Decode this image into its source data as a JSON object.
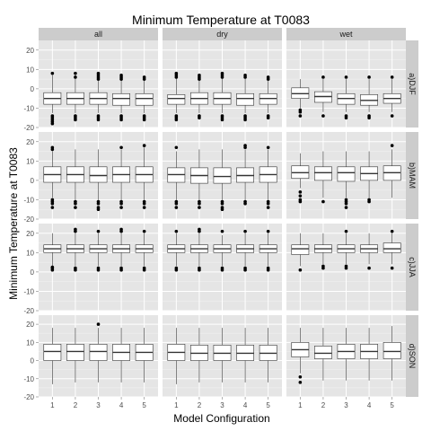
{
  "chart_data": {
    "type": "boxplot",
    "title": "Minimum Temperature at T0083",
    "xlabel": "Model Configuration",
    "ylabel": "Minimum Temperature at T0083",
    "categories": [
      "1",
      "2",
      "3",
      "4",
      "5"
    ],
    "ylim": [
      -20,
      25
    ],
    "yticks": [
      -20,
      -10,
      0,
      10,
      20
    ],
    "grid": true,
    "col_facets": [
      "all",
      "dry",
      "wet"
    ],
    "row_facets": [
      "a)DJF",
      "b)MAM",
      "c)JJA",
      "d)SON"
    ],
    "panels": [
      {
        "row": "a)DJF",
        "col": "all",
        "boxes": [
          {
            "whisker_low": -12.5,
            "q1": -8,
            "median": -5,
            "q3": -2,
            "whisker_high": 7,
            "outliers": [
              8,
              -14,
              -15,
              -16,
              -17,
              -18
            ]
          },
          {
            "whisker_low": -12.5,
            "q1": -8,
            "median": -5,
            "q3": -2,
            "whisker_high": 7,
            "outliers": [
              8,
              6,
              -14,
              -15,
              -16
            ]
          },
          {
            "whisker_low": -12.5,
            "q1": -8,
            "median": -5,
            "q3": -2,
            "whisker_high": 7,
            "outliers": [
              8,
              7,
              6,
              5,
              -14,
              -15,
              -16
            ]
          },
          {
            "whisker_low": -12.5,
            "q1": -8.5,
            "median": -5,
            "q3": -2.5,
            "whisker_high": 6,
            "outliers": [
              7,
              6,
              5,
              -14,
              -15,
              -16
            ]
          },
          {
            "whisker_low": -12.5,
            "q1": -8.5,
            "median": -5,
            "q3": -2.5,
            "whisker_high": 6,
            "outliers": [
              6,
              5,
              -14,
              -15,
              -16
            ]
          }
        ]
      },
      {
        "row": "a)DJF",
        "col": "dry",
        "boxes": [
          {
            "whisker_low": -12.5,
            "q1": -8,
            "median": -5,
            "q3": -3,
            "whisker_high": 6,
            "outliers": [
              8,
              7,
              6,
              -14,
              -15,
              -16
            ]
          },
          {
            "whisker_low": -12.5,
            "q1": -8,
            "median": -5,
            "q3": -2,
            "whisker_high": 6,
            "outliers": [
              7,
              6,
              5,
              -14,
              -15
            ]
          },
          {
            "whisker_low": -12.5,
            "q1": -8,
            "median": -5,
            "q3": -2,
            "whisker_high": 6,
            "outliers": [
              8,
              7,
              6,
              -14,
              -15,
              -16
            ]
          },
          {
            "whisker_low": -12.5,
            "q1": -8.5,
            "median": -5,
            "q3": -2.5,
            "whisker_high": 6,
            "outliers": [
              7,
              6,
              -14,
              -15,
              -16
            ]
          },
          {
            "whisker_low": -12.5,
            "q1": -8,
            "median": -5,
            "q3": -2.5,
            "whisker_high": 5,
            "outliers": [
              6,
              5,
              -14,
              -15
            ]
          }
        ]
      },
      {
        "row": "a)DJF",
        "col": "wet",
        "boxes": [
          {
            "whisker_low": -10,
            "q1": -5,
            "median": -2.5,
            "q3": 0.5,
            "whisker_high": 5,
            "outliers": [
              -11,
              -12,
              -14
            ]
          },
          {
            "whisker_low": -12,
            "q1": -7,
            "median": -4,
            "q3": -1.5,
            "whisker_high": 5,
            "outliers": [
              6,
              -14
            ]
          },
          {
            "whisker_low": -12,
            "q1": -8,
            "median": -5,
            "q3": -2.5,
            "whisker_high": 5,
            "outliers": [
              6,
              -14,
              -15
            ]
          },
          {
            "whisker_low": -12,
            "q1": -8.5,
            "median": -6,
            "q3": -3,
            "whisker_high": 5,
            "outliers": [
              6,
              -14,
              -15
            ]
          },
          {
            "whisker_low": -12,
            "q1": -7.5,
            "median": -5,
            "q3": -2.5,
            "whisker_high": 5,
            "outliers": [
              6,
              -14
            ]
          }
        ]
      },
      {
        "row": "b)MAM",
        "col": "all",
        "boxes": [
          {
            "whisker_low": -9,
            "q1": -1,
            "median": 3,
            "q3": 7,
            "whisker_high": 15,
            "outliers": [
              16,
              17,
              -10,
              -11,
              -12,
              -14
            ]
          },
          {
            "whisker_low": -10,
            "q1": -1,
            "median": 3,
            "q3": 7,
            "whisker_high": 16,
            "outliers": [
              -11,
              -12,
              -14
            ]
          },
          {
            "whisker_low": -10,
            "q1": -1,
            "median": 2.5,
            "q3": 7,
            "whisker_high": 16,
            "outliers": [
              -11,
              -12,
              -14,
              -15
            ]
          },
          {
            "whisker_low": -10,
            "q1": -1,
            "median": 3,
            "q3": 7,
            "whisker_high": 16,
            "outliers": [
              17,
              -11,
              -12,
              -14
            ]
          },
          {
            "whisker_low": -10,
            "q1": -1,
            "median": 3,
            "q3": 7,
            "whisker_high": 17,
            "outliers": [
              18,
              -11,
              -12,
              -14
            ]
          }
        ]
      },
      {
        "row": "b)MAM",
        "col": "dry",
        "boxes": [
          {
            "whisker_low": -10,
            "q1": -1,
            "median": 3,
            "q3": 6.5,
            "whisker_high": 15,
            "outliers": [
              17,
              -11,
              -12,
              -14
            ]
          },
          {
            "whisker_low": -10,
            "q1": -1.5,
            "median": 2.5,
            "q3": 6.5,
            "whisker_high": 16,
            "outliers": [
              -11,
              -12,
              -14
            ]
          },
          {
            "whisker_low": -10,
            "q1": -1.5,
            "median": 2,
            "q3": 6.5,
            "whisker_high": 16,
            "outliers": [
              -11,
              -12,
              -14,
              -15
            ]
          },
          {
            "whisker_low": -10,
            "q1": -1,
            "median": 2.5,
            "q3": 6.5,
            "whisker_high": 16,
            "outliers": [
              17,
              18,
              -11,
              -12
            ]
          },
          {
            "whisker_low": -10,
            "q1": -1,
            "median": 3,
            "q3": 7,
            "whisker_high": 16,
            "outliers": [
              17,
              -11,
              -12,
              -14
            ]
          }
        ]
      },
      {
        "row": "b)MAM",
        "col": "wet",
        "boxes": [
          {
            "whisker_low": -4,
            "q1": 1,
            "median": 4,
            "q3": 7.5,
            "whisker_high": 14,
            "outliers": [
              -6,
              -8,
              -10,
              -11
            ]
          },
          {
            "whisker_low": -9,
            "q1": 0,
            "median": 4,
            "q3": 7,
            "whisker_high": 15,
            "outliers": [
              -11
            ]
          },
          {
            "whisker_low": -9,
            "q1": -0.5,
            "median": 4,
            "q3": 7,
            "whisker_high": 15,
            "outliers": [
              -10,
              -11,
              -12,
              -14
            ]
          },
          {
            "whisker_low": -9,
            "q1": 0,
            "median": 3.5,
            "q3": 7,
            "whisker_high": 15,
            "outliers": [
              -10,
              -11
            ]
          },
          {
            "whisker_low": -9,
            "q1": 0,
            "median": 4,
            "q3": 7.5,
            "whisker_high": 16,
            "outliers": [
              18
            ]
          }
        ]
      },
      {
        "row": "c)JJA",
        "col": "all",
        "boxes": [
          {
            "whisker_low": 3,
            "q1": 10,
            "median": 12,
            "q3": 14,
            "whisker_high": 20,
            "outliers": [
              1,
              2,
              2.5
            ]
          },
          {
            "whisker_low": 3,
            "q1": 10,
            "median": 12,
            "q3": 14,
            "whisker_high": 20,
            "outliers": [
              21,
              22,
              1,
              2
            ]
          },
          {
            "whisker_low": 3,
            "q1": 10,
            "median": 12,
            "q3": 14,
            "whisker_high": 20,
            "outliers": [
              21,
              1,
              2
            ]
          },
          {
            "whisker_low": 3,
            "q1": 10,
            "median": 12,
            "q3": 14,
            "whisker_high": 20,
            "outliers": [
              21,
              22,
              1,
              2
            ]
          },
          {
            "whisker_low": 3,
            "q1": 10,
            "median": 12,
            "q3": 14,
            "whisker_high": 20,
            "outliers": [
              21,
              1,
              2
            ]
          }
        ]
      },
      {
        "row": "c)JJA",
        "col": "dry",
        "boxes": [
          {
            "whisker_low": 3,
            "q1": 10,
            "median": 12,
            "q3": 14,
            "whisker_high": 20,
            "outliers": [
              21,
              1,
              2
            ]
          },
          {
            "whisker_low": 3,
            "q1": 10,
            "median": 12,
            "q3": 14,
            "whisker_high": 20,
            "outliers": [
              21,
              22,
              1,
              2
            ]
          },
          {
            "whisker_low": 3,
            "q1": 10,
            "median": 12,
            "q3": 14,
            "whisker_high": 19,
            "outliers": [
              21,
              1,
              2
            ]
          },
          {
            "whisker_low": 3,
            "q1": 10,
            "median": 12,
            "q3": 14,
            "whisker_high": 20,
            "outliers": [
              21,
              1,
              2
            ]
          },
          {
            "whisker_low": 3,
            "q1": 10,
            "median": 12,
            "q3": 14,
            "whisker_high": 20,
            "outliers": [
              21,
              1,
              2
            ]
          }
        ]
      },
      {
        "row": "c)JJA",
        "col": "wet",
        "boxes": [
          {
            "whisker_low": 3,
            "q1": 9,
            "median": 12,
            "q3": 14,
            "whisker_high": 20,
            "outliers": [
              1
            ]
          },
          {
            "whisker_low": 4,
            "q1": 10,
            "median": 12,
            "q3": 14,
            "whisker_high": 20,
            "outliers": [
              2,
              3
            ]
          },
          {
            "whisker_low": 4,
            "q1": 10,
            "median": 12,
            "q3": 14,
            "whisker_high": 20,
            "outliers": [
              21,
              2,
              3
            ]
          },
          {
            "whisker_low": 4,
            "q1": 10,
            "median": 12,
            "q3": 14,
            "whisker_high": 20,
            "outliers": [
              2
            ]
          },
          {
            "whisker_low": 4,
            "q1": 10,
            "median": 12,
            "q3": 15,
            "whisker_high": 20,
            "outliers": [
              21,
              2
            ]
          }
        ]
      },
      {
        "row": "d)SON",
        "col": "all",
        "boxes": [
          {
            "whisker_low": -13,
            "q1": 0,
            "median": 5,
            "q3": 9,
            "whisker_high": 18,
            "outliers": []
          },
          {
            "whisker_low": -12,
            "q1": 0,
            "median": 5,
            "q3": 9,
            "whisker_high": 18,
            "outliers": []
          },
          {
            "whisker_low": -12,
            "q1": 0,
            "median": 5,
            "q3": 9,
            "whisker_high": 18,
            "outliers": [
              20
            ]
          },
          {
            "whisker_low": -12,
            "q1": 0,
            "median": 4.5,
            "q3": 9,
            "whisker_high": 18,
            "outliers": []
          },
          {
            "whisker_low": -12,
            "q1": 0,
            "median": 4.5,
            "q3": 9,
            "whisker_high": 18,
            "outliers": []
          }
        ]
      },
      {
        "row": "d)SON",
        "col": "dry",
        "boxes": [
          {
            "whisker_low": -13,
            "q1": 0,
            "median": 4.5,
            "q3": 9,
            "whisker_high": 18,
            "outliers": []
          },
          {
            "whisker_low": -12,
            "q1": 0,
            "median": 4,
            "q3": 8.5,
            "whisker_high": 18,
            "outliers": []
          },
          {
            "whisker_low": -12,
            "q1": 0,
            "median": 4,
            "q3": 8.5,
            "whisker_high": 18,
            "outliers": []
          },
          {
            "whisker_low": -12,
            "q1": 0,
            "median": 4,
            "q3": 8.5,
            "whisker_high": 18,
            "outliers": []
          },
          {
            "whisker_low": -12,
            "q1": 0,
            "median": 4,
            "q3": 8.5,
            "whisker_high": 18,
            "outliers": []
          }
        ]
      },
      {
        "row": "d)SON",
        "col": "wet",
        "boxes": [
          {
            "whisker_low": -7,
            "q1": 2,
            "median": 6,
            "q3": 10,
            "whisker_high": 18,
            "outliers": [
              -9,
              -12
            ]
          },
          {
            "whisker_low": -11,
            "q1": 1,
            "median": 4,
            "q3": 8,
            "whisker_high": 18,
            "outliers": []
          },
          {
            "whisker_low": -11,
            "q1": 1,
            "median": 5,
            "q3": 9,
            "whisker_high": 18,
            "outliers": []
          },
          {
            "whisker_low": -11,
            "q1": 1,
            "median": 5,
            "q3": 9,
            "whisker_high": 18,
            "outliers": []
          },
          {
            "whisker_low": -11,
            "q1": 1,
            "median": 5,
            "q3": 10,
            "whisker_high": 19,
            "outliers": []
          }
        ]
      }
    ]
  }
}
